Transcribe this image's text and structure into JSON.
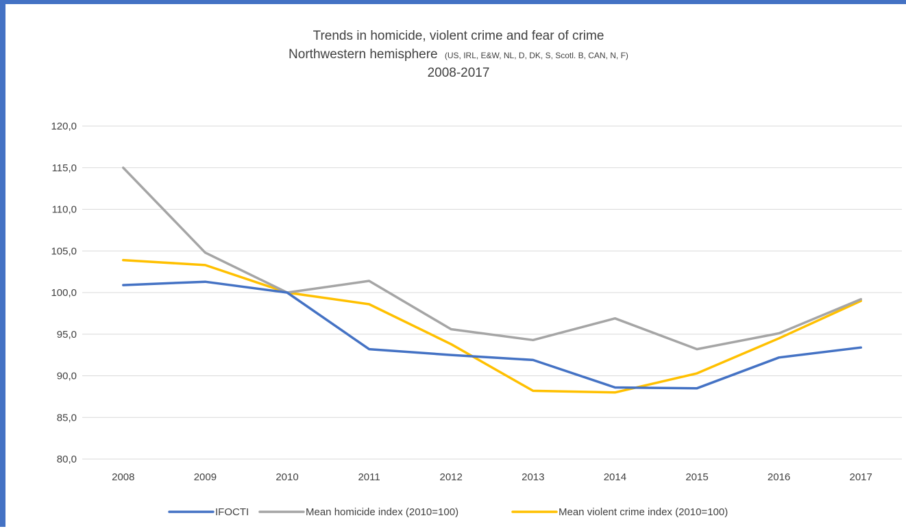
{
  "chart_data": {
    "type": "line",
    "title": "Trends in homicide, violent crime and fear of crime",
    "subtitle_main": "Northwestern hemisphere",
    "subtitle_small": "(US, IRL, E&W, NL, D, DK, S, Scotl. B, CAN, N, F)",
    "subtitle_years": "2008-2017",
    "x": [
      "2008",
      "2009",
      "2010",
      "2011",
      "2012",
      "2013",
      "2014",
      "2015",
      "2016",
      "2017"
    ],
    "ylim": [
      80,
      120
    ],
    "yticks": [
      "80,0",
      "85,0",
      "90,0",
      "95,0",
      "100,0",
      "105,0",
      "110,0",
      "115,0",
      "120,0"
    ],
    "grid": true,
    "legend_position": "bottom",
    "series": [
      {
        "name": "IFOCTI",
        "color": "#4472c4",
        "values": [
          100.9,
          101.3,
          100.0,
          93.2,
          92.5,
          91.9,
          88.6,
          88.5,
          92.2,
          93.4
        ]
      },
      {
        "name": "Mean homicide index (2010=100)",
        "color": "#a5a5a5",
        "values": [
          115.0,
          104.8,
          100.0,
          101.4,
          95.6,
          94.3,
          96.9,
          93.2,
          95.1,
          99.2
        ]
      },
      {
        "name": "Mean violent crime index (2010=100)",
        "color": "#ffc000",
        "values": [
          103.9,
          103.3,
          100.0,
          98.6,
          93.8,
          88.2,
          88.0,
          90.3,
          94.5,
          99.0
        ]
      }
    ]
  }
}
